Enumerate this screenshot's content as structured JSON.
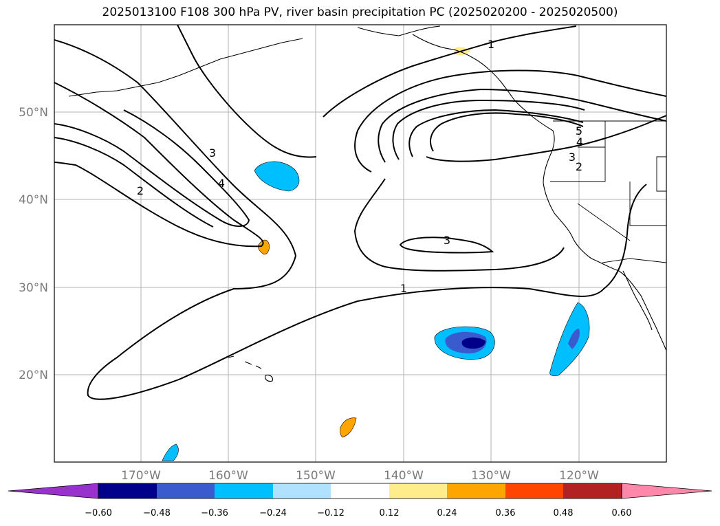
{
  "title": "2025013100 F108 300 hPa PV, river basin precipitation PC (2025020200 - 2025020500)",
  "lat_labels": [
    "50°N",
    "40°N",
    "30°N",
    "20°N"
  ],
  "lon_labels": [
    "170°W",
    "160°W",
    "150°W",
    "140°W",
    "130°W",
    "120°W"
  ],
  "contour_labels": [
    "1",
    "1",
    "2",
    "2",
    "3",
    "3",
    "3",
    "4",
    "4",
    "5"
  ],
  "colorbar": {
    "ticks": [
      "−0.60",
      "−0.48",
      "−0.36",
      "−0.24",
      "−0.12",
      "0.12",
      "0.24",
      "0.36",
      "0.48",
      "0.60"
    ],
    "colors": [
      "#9932cc",
      "#00008b",
      "#3a5bcd",
      "#00bfff",
      "#b0e2ff",
      "#ffffff",
      "#ffec8b",
      "#ffa500",
      "#ff4500",
      "#b22222",
      "#ff88aa"
    ]
  }
}
